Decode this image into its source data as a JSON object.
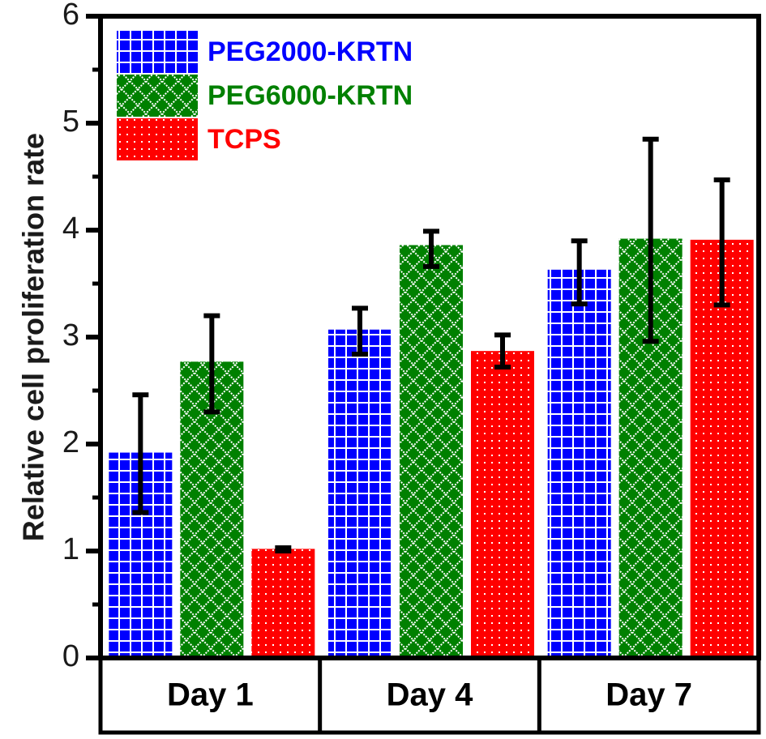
{
  "chart_data": {
    "type": "bar",
    "title": "",
    "xlabel": "",
    "ylabel": "Relative cell proliferation rate",
    "ylim": [
      0,
      6
    ],
    "yticks": [
      0,
      1,
      2,
      3,
      4,
      5,
      6
    ],
    "y_minor_ticks": [
      0.5,
      1.5,
      2.5,
      3.5,
      4.5,
      5.5
    ],
    "grid": false,
    "legend_position": "top-left",
    "categories": [
      "Day 1",
      "Day 4",
      "Day 7"
    ],
    "series": [
      {
        "name": "PEG2000-KRTN",
        "color": "#0000ff",
        "pattern": "grid",
        "values": [
          1.92,
          3.07,
          3.63
        ],
        "error_upper": [
          2.46,
          3.27,
          3.9
        ],
        "error_lower": [
          1.36,
          2.84,
          3.31
        ]
      },
      {
        "name": "PEG6000-KRTN",
        "color": "#008000",
        "pattern": "crosshatch",
        "values": [
          2.77,
          3.86,
          3.92
        ],
        "error_upper": [
          3.2,
          3.99,
          4.85
        ],
        "error_lower": [
          2.3,
          3.66,
          2.96
        ]
      },
      {
        "name": "TCPS",
        "color": "#ff0000",
        "pattern": "dots",
        "values": [
          1.02,
          2.87,
          3.91
        ],
        "error_upper": [
          1.03,
          3.02,
          4.47
        ],
        "error_lower": [
          1.0,
          2.72,
          3.3
        ]
      }
    ]
  }
}
